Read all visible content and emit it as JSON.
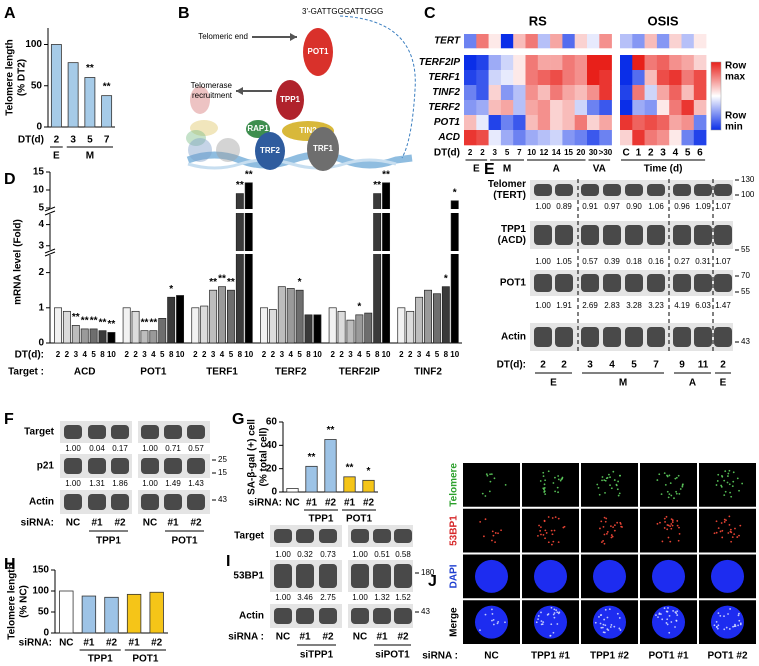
{
  "panel_labels": [
    "A",
    "B",
    "C",
    "D",
    "E",
    "F",
    "G",
    "H",
    "I",
    "J"
  ],
  "chart_data": [
    {
      "type": "bar",
      "y_label": [
        "Telomere length",
        "(% DT2)"
      ],
      "x_label": "DT(d)",
      "color": "#a6cbe8",
      "ylim": [
        0,
        120
      ],
      "yticks": [
        0,
        50,
        100
      ],
      "groups": [
        {
          "name": "E",
          "categories": [
            "2"
          ],
          "values": [
            100
          ],
          "annotations": [
            null
          ]
        },
        {
          "name": "M",
          "categories": [
            "3",
            "5",
            "7"
          ],
          "values": [
            78,
            60,
            38
          ],
          "annotations": [
            null,
            "**",
            "**"
          ]
        }
      ]
    },
    {
      "type": "heatmap",
      "rows": [
        "TERT",
        "TERF2IP",
        "TERF1",
        "TINF2",
        "TERF2",
        "POT1",
        "ACD"
      ],
      "zlim": [
        -1,
        1
      ],
      "colormap": [
        "#0a2ee8",
        "#ffffff",
        "#e8201a"
      ],
      "legend": {
        "max": [
          "Row",
          "max"
        ],
        "min": [
          "Row",
          "min"
        ]
      },
      "blocks": [
        {
          "name": "RS",
          "x_label": "DT(d)",
          "groups": [
            {
              "name": "E",
              "columns": [
                "2",
                "2"
              ]
            },
            {
              "name": "M",
              "columns": [
                "3",
                "5",
                "7"
              ]
            },
            {
              "name": "A",
              "columns": [
                "10",
                "12",
                "14",
                "15",
                "20"
              ]
            },
            {
              "name": "VA",
              "columns": [
                "30",
                ">30"
              ]
            }
          ],
          "values": [
            [
              -0.6,
              0.6,
              0.1,
              -1,
              0.3,
              0.6,
              -0.3,
              0.4,
              -0.7,
              0.2,
              -0.1,
              0.5
            ],
            [
              -1,
              -0.9,
              -0.4,
              -0.2,
              0.1,
              0.6,
              0.4,
              0.4,
              0.6,
              0.5,
              1,
              1
            ],
            [
              -0.9,
              -0.8,
              -0.2,
              -0.1,
              0.1,
              0.6,
              0.7,
              0.8,
              0.6,
              0.5,
              1,
              0.9
            ],
            [
              -0.6,
              -0.8,
              0.2,
              -0.5,
              -0.3,
              0.5,
              0.3,
              0.6,
              0.4,
              0.3,
              0.5,
              0.9
            ],
            [
              -0.5,
              -0.4,
              0.3,
              0.4,
              -0.3,
              0.4,
              0.5,
              0.2,
              0.3,
              -0.2,
              -0.6,
              -0.8
            ],
            [
              0.3,
              -0.1,
              -0.9,
              -0.6,
              -0.8,
              0.3,
              0.5,
              0.2,
              0.3,
              0.6,
              0.2,
              0.4
            ],
            [
              0.9,
              0.8,
              -0.1,
              -0.4,
              -0.6,
              -0.4,
              -0.3,
              -0.2,
              -0.5,
              -0.6,
              -0.8,
              -0.6
            ]
          ]
        },
        {
          "name": "OSIS",
          "x_label": "Time (d)",
          "columns": [
            "C",
            "1",
            "2",
            "3",
            "4",
            "5",
            "6"
          ],
          "values": [
            [
              -0.3,
              -0.5,
              0.3,
              -0.5,
              0.2,
              -0.3,
              0.1
            ],
            [
              -1,
              1,
              0.6,
              0.7,
              0.5,
              0.4,
              0.2
            ],
            [
              -1,
              -0.7,
              0.3,
              0.8,
              0.9,
              0.6,
              0.8
            ],
            [
              -0.9,
              0.6,
              -0.2,
              0.4,
              0.7,
              0.3,
              0.8
            ],
            [
              -1,
              -0.4,
              -0.5,
              0.1,
              0.6,
              0.9,
              0.3
            ],
            [
              0.9,
              0.7,
              0.8,
              0.7,
              0.4,
              0.5,
              -0.6
            ],
            [
              0.2,
              0.9,
              0.6,
              0.5,
              0.1,
              -0.6,
              -0.9
            ]
          ]
        }
      ]
    },
    {
      "type": "grouped_bar",
      "y_label": "mRNA level (Fold)",
      "x_label": "DT(d):",
      "group_label": "Target :",
      "ylim": [
        0,
        15
      ],
      "yticks": [
        0,
        1,
        2,
        3,
        4,
        5,
        10,
        15
      ],
      "axis_segments": [
        [
          0,
          2.5
        ],
        [
          2.8,
          4.5
        ],
        [
          5,
          15
        ]
      ],
      "categories": [
        "2",
        "2",
        "3",
        "4",
        "5",
        "8",
        "10"
      ],
      "colors": [
        "#f2f2f2",
        "#dcdcdc",
        "#bdbdbd",
        "#9a9a9a",
        "#6e6e6e",
        "#3a3a3a",
        "#000000"
      ],
      "groups": [
        {
          "name": "ACD",
          "values": [
            1,
            0.9,
            0.5,
            0.4,
            0.4,
            0.35,
            0.3
          ],
          "annotations": [
            null,
            null,
            "**",
            "**",
            "**",
            "**",
            "**"
          ]
        },
        {
          "name": "POT1",
          "values": [
            1,
            0.9,
            0.35,
            0.35,
            0.7,
            1.3,
            1.35
          ],
          "annotations": [
            null,
            null,
            "**",
            "**",
            null,
            "*",
            null
          ]
        },
        {
          "name": "TERF1",
          "values": [
            1,
            1.05,
            1.5,
            1.6,
            1.5,
            9,
            12
          ],
          "annotations": [
            null,
            null,
            "**",
            "**",
            "**",
            "**",
            "**"
          ]
        },
        {
          "name": "TERF2",
          "values": [
            1,
            0.95,
            1.6,
            1.55,
            1.5,
            0.8,
            0.8
          ],
          "annotations": [
            null,
            null,
            null,
            null,
            "*",
            null,
            null
          ]
        },
        {
          "name": "TERF2IP",
          "values": [
            1,
            0.9,
            0.65,
            0.8,
            0.85,
            9,
            12
          ],
          "annotations": [
            null,
            null,
            null,
            "*",
            null,
            "**",
            "**"
          ]
        },
        {
          "name": "TINF2",
          "values": [
            1,
            0.9,
            1.3,
            1.5,
            1.4,
            1.6,
            7
          ],
          "annotations": [
            null,
            null,
            null,
            null,
            null,
            "*",
            "*"
          ]
        }
      ]
    },
    {
      "type": "bar",
      "y_label": [
        "SA-β-gal (+) cell",
        "(% total cell)"
      ],
      "x_label": "siRNA:",
      "ylim": [
        0,
        60
      ],
      "yticks": [
        0,
        20,
        40,
        60
      ],
      "groups": [
        {
          "categories": [
            "NC"
          ],
          "values": [
            3
          ],
          "color": "#ffffff",
          "annotations": [
            null
          ]
        },
        {
          "name": "TPP1",
          "categories": [
            "#1",
            "#2"
          ],
          "values": [
            22,
            45
          ],
          "color": "#9dc3e6",
          "annotations": [
            "**",
            "**"
          ]
        },
        {
          "name": "POT1",
          "categories": [
            "#1",
            "#2"
          ],
          "values": [
            13,
            10
          ],
          "color": "#f5c518",
          "annotations": [
            "**",
            "*"
          ]
        }
      ]
    },
    {
      "type": "bar",
      "y_label": [
        "Telomere length",
        "(% NC)"
      ],
      "x_label": "siRNA:",
      "ylim": [
        0,
        150
      ],
      "yticks": [
        0,
        50,
        100,
        150
      ],
      "groups": [
        {
          "categories": [
            "NC"
          ],
          "values": [
            100
          ],
          "color": "#ffffff"
        },
        {
          "name": "TPP1",
          "categories": [
            "#1",
            "#2"
          ],
          "values": [
            88,
            85
          ],
          "color": "#9dc3e6"
        },
        {
          "name": "POT1",
          "categories": [
            "#1",
            "#2"
          ],
          "values": [
            92,
            97
          ],
          "color": "#f5c518"
        }
      ]
    }
  ],
  "panel_B": {
    "end": "3'-GATTGGGATTGGG",
    "telomeric_end": "Telomeric end",
    "recruitment": [
      "Telomerase",
      "recruitment"
    ],
    "proteins": [
      "POT1",
      "TPP1",
      "TIN2",
      "RAP1",
      "TRF2",
      "TRF1"
    ]
  },
  "panel_E": {
    "rows": [
      {
        "label": [
          "Telomer",
          "(TERT)"
        ],
        "quant": [
          "1.00",
          "0.89",
          "0.91",
          "0.97",
          "0.90",
          "1.06",
          "0.96",
          "1.09",
          "1.07"
        ],
        "markers": [
          130,
          100
        ]
      },
      {
        "label": [
          "TPP1",
          "(ACD)"
        ],
        "quant": [
          "1.00",
          "1.05",
          "0.57",
          "0.39",
          "0.18",
          "0.16",
          "0.27",
          "0.31",
          "1.07"
        ],
        "markers": [
          55
        ]
      },
      {
        "label": "POT1",
        "quant": [
          "1.00",
          "1.91",
          "2.69",
          "2.83",
          "3.28",
          "3.23",
          "4.19",
          "6.03",
          "1.47"
        ],
        "markers": [
          70,
          55
        ]
      },
      {
        "label": "Actin",
        "markers": [
          43
        ]
      }
    ],
    "lane_label": "DT(d):",
    "groups": [
      {
        "name": "E",
        "lanes": [
          "2",
          "2"
        ]
      },
      {
        "name": "M",
        "lanes": [
          "3",
          "4",
          "5",
          "7"
        ]
      },
      {
        "name": "A",
        "lanes": [
          "9",
          "11"
        ]
      },
      {
        "name": "E",
        "lanes": [
          "2"
        ]
      }
    ]
  },
  "panel_F": {
    "rows": [
      {
        "label": "Target",
        "quant": [
          "1.00",
          "0.04",
          "0.17",
          "1.00",
          "0.71",
          "0.57"
        ]
      },
      {
        "label": "p21",
        "quant": [
          "1.00",
          "1.31",
          "1.86",
          "1.00",
          "1.49",
          "1.43"
        ],
        "markers": [
          25,
          15
        ]
      },
      {
        "label": "Actin",
        "markers": [
          43
        ]
      }
    ],
    "lane_label": "siRNA:",
    "groups": [
      {
        "lanes": [
          "NC"
        ]
      },
      {
        "name": "TPP1",
        "lanes": [
          "#1",
          "#2"
        ]
      },
      {
        "lanes": [
          "NC"
        ]
      },
      {
        "name": "POT1",
        "lanes": [
          "#1",
          "#2"
        ]
      }
    ]
  },
  "panel_I": {
    "rows": [
      {
        "label": "Target",
        "quant": [
          "1.00",
          "0.32",
          "0.73",
          "1.00",
          "0.51",
          "0.58"
        ]
      },
      {
        "label": "53BP1",
        "quant": [
          "1.00",
          "3.46",
          "2.75",
          "1.00",
          "1.32",
          "1.52"
        ],
        "markers": [
          180
        ]
      },
      {
        "label": "Actin",
        "markers": [
          43
        ]
      }
    ],
    "lane_label": "siRNA :",
    "groups": [
      {
        "lanes": [
          "NC"
        ]
      },
      {
        "name": "siTPP1",
        "lanes": [
          "#1",
          "#2"
        ]
      },
      {
        "lanes": [
          "NC"
        ]
      },
      {
        "name": "siPOT1",
        "lanes": [
          "#1",
          "#2"
        ]
      }
    ]
  },
  "panel_J": {
    "rows": [
      "Telomere",
      "53BP1",
      "DAPI",
      "Merge"
    ],
    "lane_label": "siRNA :",
    "columns": [
      "NC",
      "TPP1 #1",
      "TPP1 #2",
      "POT1 #1",
      "POT1 #2"
    ]
  }
}
